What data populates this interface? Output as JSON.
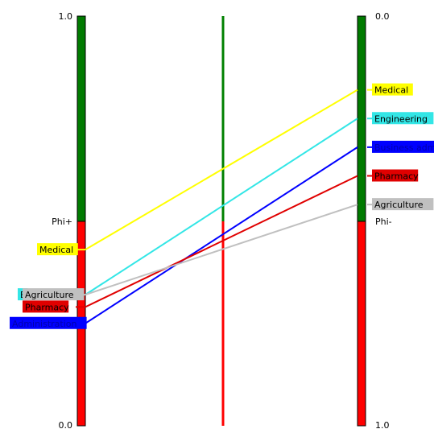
{
  "chart_data": {
    "type": "parallel-coordinates",
    "left_axis": {
      "top_label": "1.0",
      "bottom_label": "0.0",
      "split_label": "Phi+",
      "split_value": 0.5
    },
    "right_axis": {
      "top_label": "0.0",
      "bottom_label": "1.0",
      "split_label": "Phi-",
      "split_value": 0.5
    },
    "middle_axis": {
      "positive_color": "#008000",
      "negative_color": "#ff0000"
    },
    "colors": {
      "phi_plus": "#007a00",
      "phi_minus": "#ff0000"
    },
    "series": [
      {
        "name": "Medical",
        "label_left": "Medical",
        "label_right": "Medical",
        "color": "#ffff00",
        "text_color": "#000000",
        "phi_plus": 0.43,
        "phi_minus": 0.18
      },
      {
        "name": "Engineering",
        "label_left": "E",
        "label_right": "Engineering",
        "color": "#33e6e6",
        "text_color": "#000000",
        "phi_plus": 0.32,
        "phi_minus": 0.25
      },
      {
        "name": "Business",
        "label_left": "Administration",
        "label_right": "Business adm",
        "color": "#0000ff",
        "text_color": "#0000aa",
        "phi_plus": 0.25,
        "phi_minus": 0.32
      },
      {
        "name": "Pharmacy",
        "label_left": "Pharmacy",
        "label_right": "Pharmacy",
        "color": "#e00000",
        "text_color": "#000000",
        "phi_plus": 0.29,
        "phi_minus": 0.39
      },
      {
        "name": "Agriculture",
        "label_left": "Agriculture",
        "label_right": "Agriculture",
        "color": "#c0c0c0",
        "text_color": "#000000",
        "phi_plus": 0.32,
        "phi_minus": 0.46
      }
    ]
  }
}
